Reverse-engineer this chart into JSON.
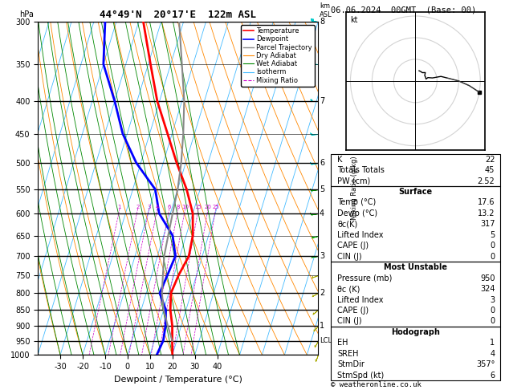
{
  "title_left": "44°49'N  20°17'E  122m ASL",
  "title_right": "06.06.2024  00GMT  (Base: 00)",
  "xlabel": "Dewpoint / Temperature (°C)",
  "ylabel_left": "hPa",
  "copyright": "© weatheronline.co.uk",
  "pressure_levels": [
    300,
    350,
    400,
    450,
    500,
    550,
    600,
    650,
    700,
    750,
    800,
    850,
    900,
    950,
    1000
  ],
  "pressure_major": [
    300,
    400,
    500,
    550,
    600,
    700,
    800,
    850,
    900,
    950,
    1000
  ],
  "temp_ticks": [
    -30,
    -20,
    -10,
    0,
    10,
    20,
    30,
    40
  ],
  "mixing_ratio_lines": [
    1,
    2,
    3,
    4,
    6,
    8,
    10,
    15,
    20,
    25
  ],
  "temperature_profile": {
    "pressure": [
      300,
      350,
      400,
      450,
      500,
      550,
      600,
      650,
      700,
      750,
      800,
      850,
      900,
      950,
      1000
    ],
    "temp": [
      -38,
      -29,
      -21,
      -12,
      -4,
      4,
      10,
      13,
      14,
      12,
      11,
      13,
      16,
      18,
      20
    ]
  },
  "dewpoint_profile": {
    "pressure": [
      300,
      350,
      400,
      450,
      500,
      550,
      600,
      650,
      700,
      750,
      800,
      850,
      900,
      950,
      1000
    ],
    "temp": [
      -55,
      -50,
      -40,
      -32,
      -22,
      -10,
      -5,
      4,
      8,
      7,
      6,
      11,
      13,
      14,
      13
    ]
  },
  "parcel_profile": {
    "pressure": [
      950,
      900,
      850,
      800,
      750,
      700,
      650,
      600,
      550,
      500,
      450,
      400,
      350,
      300
    ],
    "temp": [
      18,
      14,
      10,
      7,
      5,
      3,
      2,
      1,
      0,
      -2,
      -5,
      -9,
      -15,
      -22
    ]
  },
  "stats": {
    "K": 22,
    "Totals_Totals": 45,
    "PW_cm": 2.52,
    "Surface_Temp": 17.6,
    "Surface_Dewp": 13.2,
    "Surface_theta_e": 317,
    "Surface_LI": 5,
    "Surface_CAPE": 0,
    "Surface_CIN": 0,
    "MU_Pressure": 950,
    "MU_theta_e": 324,
    "MU_LI": 3,
    "MU_CAPE": 0,
    "MU_CIN": 0,
    "EH": 1,
    "SREH": 4,
    "StmDir": 357,
    "StmSpd": 6
  },
  "hodograph_rings": [
    10,
    20,
    30
  ],
  "wind_barbs": {
    "pressure": [
      300,
      350,
      400,
      450,
      500,
      550,
      600,
      650,
      700,
      750,
      800,
      850,
      900,
      950,
      1000
    ],
    "speed_kt": [
      30,
      25,
      20,
      15,
      12,
      10,
      8,
      6,
      5,
      5,
      5,
      6,
      5,
      5,
      5
    ],
    "direction_deg": [
      280,
      275,
      270,
      265,
      260,
      260,
      260,
      255,
      260,
      250,
      240,
      230,
      220,
      210,
      200
    ]
  },
  "skew_factor": 45,
  "background_color": "#ffffff",
  "isotherm_color": "#44bbff",
  "dry_adiabat_color": "#ff8800",
  "wet_adiabat_color": "#008800",
  "mixing_ratio_color": "#cc00cc",
  "temp_color": "#ff0000",
  "dewpoint_color": "#0000ff",
  "parcel_color": "#888888",
  "wind_color_high": "#00cccc",
  "wind_color_mid": "#00aa00",
  "wind_color_low": "#aaaa00",
  "km_labels": {
    "300": "8",
    "400": "7",
    "500": "6",
    "550": "5",
    "600": "4",
    "700": "3",
    "800": "2",
    "900": "1"
  },
  "lcl_pressure": 950
}
